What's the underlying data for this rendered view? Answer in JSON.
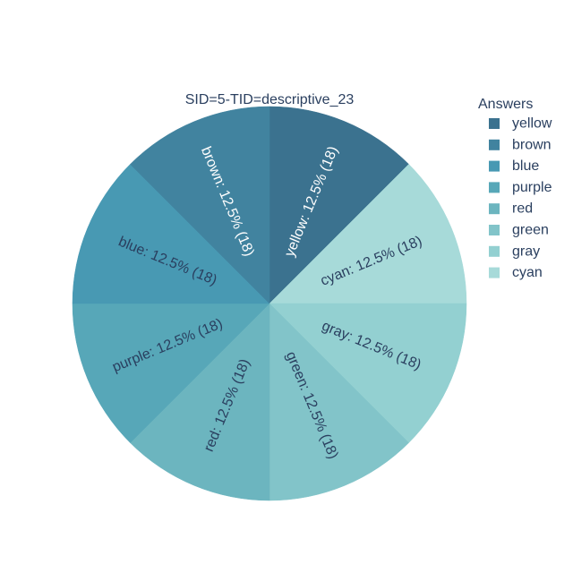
{
  "chart_data": {
    "type": "pie",
    "title": "SID=5-TID=descriptive_23",
    "legend_title": "Answers",
    "legend_position": "top-right",
    "slices": [
      {
        "label": "yellow",
        "value": 18,
        "percent": "12.5%",
        "color": "#3b728f",
        "text_color": "#ffffff"
      },
      {
        "label": "brown",
        "value": 18,
        "percent": "12.5%",
        "color": "#41839f",
        "text_color": "#ffffff"
      },
      {
        "label": "blue",
        "value": 18,
        "percent": "12.5%",
        "color": "#4899b3",
        "text_color": "#2a3f5f"
      },
      {
        "label": "purple",
        "value": 18,
        "percent": "12.5%",
        "color": "#57a7b8",
        "text_color": "#2a3f5f"
      },
      {
        "label": "red",
        "value": 18,
        "percent": "12.5%",
        "color": "#6cb5bf",
        "text_color": "#2a3f5f"
      },
      {
        "label": "green",
        "value": 18,
        "percent": "12.5%",
        "color": "#82c4c9",
        "text_color": "#2a3f5f"
      },
      {
        "label": "gray",
        "value": 18,
        "percent": "12.5%",
        "color": "#93d0d1",
        "text_color": "#2a3f5f"
      },
      {
        "label": "cyan",
        "value": 18,
        "percent": "12.5%",
        "color": "#a7dad9",
        "text_color": "#2a3f5f"
      }
    ],
    "slice_order_clockwise_from_top": [
      "yellow",
      "cyan",
      "gray",
      "green",
      "red",
      "purple",
      "blue",
      "brown"
    ]
  }
}
